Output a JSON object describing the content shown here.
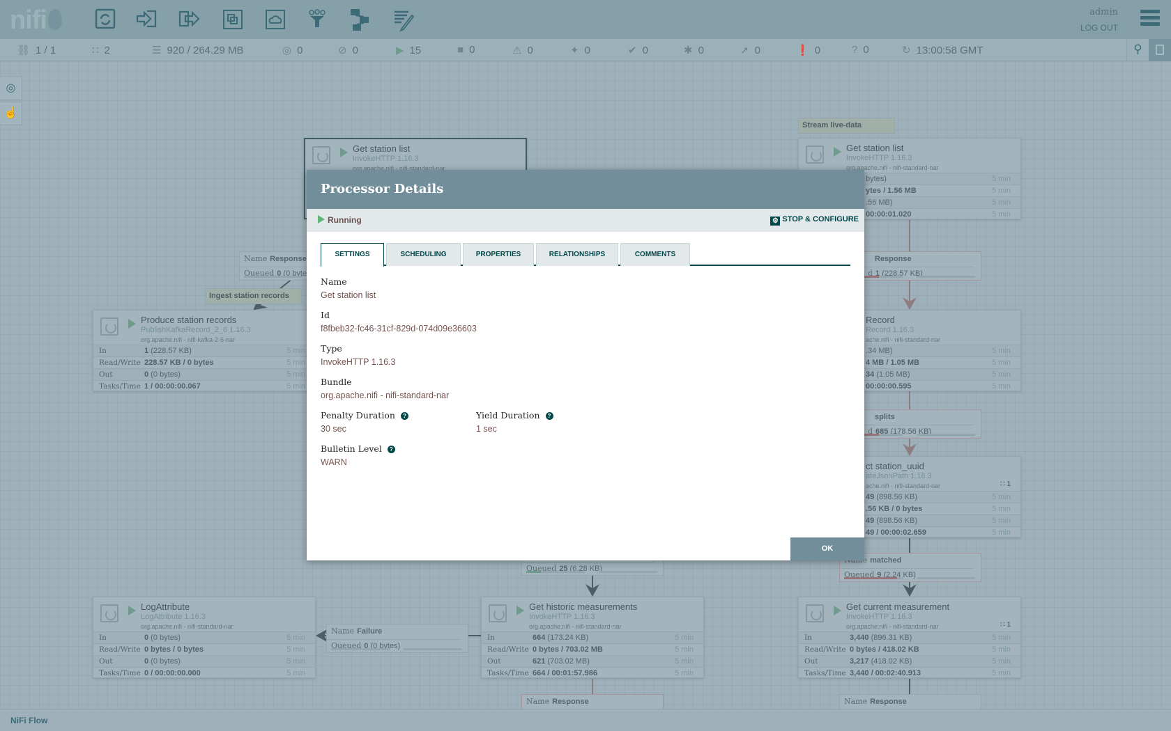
{
  "header": {
    "logo": "nifi",
    "tools": [
      "processor-icon",
      "input-port-icon",
      "output-port-icon",
      "process-group-icon",
      "remote-process-group-icon",
      "funnel-icon",
      "template-icon",
      "label-icon"
    ],
    "user": "admin",
    "logout": "LOG OUT"
  },
  "status_bar": [
    {
      "icon": "cluster-icon",
      "value": "1 / 1"
    },
    {
      "icon": "threads-icon",
      "value": "2"
    },
    {
      "icon": "queued-icon",
      "value": "920 / 264.29 MB"
    },
    {
      "icon": "transmitting-icon",
      "value": "0"
    },
    {
      "icon": "not-transmitting-icon",
      "value": "0"
    },
    {
      "icon": "running-icon",
      "value": "15"
    },
    {
      "icon": "stopped-icon",
      "value": "0"
    },
    {
      "icon": "invalid-icon",
      "value": "0"
    },
    {
      "icon": "disabled-icon",
      "value": "0"
    },
    {
      "icon": "up-to-date-icon",
      "value": "0"
    },
    {
      "icon": "locally-modified-icon",
      "value": "0"
    },
    {
      "icon": "stale-icon",
      "value": "0"
    },
    {
      "icon": "locally-modified-stale-icon",
      "value": "0"
    },
    {
      "icon": "sync-failure-icon",
      "value": "0"
    },
    {
      "icon": "refresh-icon",
      "value": "13:00:58 GMT"
    }
  ],
  "canvas": {
    "labels": [
      "Ingest station records",
      "Stream live-data"
    ],
    "processors": [
      {
        "name": "Get station list",
        "type": "InvokeHTTP 1.16.3",
        "bundle": "org.apache.nifi - nifi-standard-nar",
        "rows": []
      },
      {
        "name": "Produce station records",
        "type": "PublishKafkaRecord_2_6 1.16.3",
        "bundle": "org.apache.nifi - nifi-kafka-2-6-nar",
        "rows": [
          {
            "label": "In",
            "bold": "1",
            "rest": " (228.57 KB)",
            "window": "5 min"
          },
          {
            "label": "Read/Write",
            "bold": "228.57 KB / 0 bytes",
            "rest": "",
            "window": "5 min"
          },
          {
            "label": "Out",
            "bold": "0",
            "rest": " (0 bytes)",
            "window": "5 min"
          },
          {
            "label": "Tasks/Time",
            "bold": "1 / 00:00:00.067",
            "rest": "",
            "window": "5 min"
          }
        ]
      },
      {
        "name": "Get station list",
        "type": "InvokeHTTP 1.16.3",
        "bundle": "org.apache.nifi - nifi-standard-nar",
        "rows": [
          {
            "label": "",
            "bold": "",
            "rest": "bytes)",
            "window": "5 min"
          },
          {
            "label": "",
            "bold": "ytes / 1.56 MB",
            "rest": "",
            "window": "5 min"
          },
          {
            "label": "",
            "bold": "",
            "rest": ".56 MB)",
            "window": "5 min"
          },
          {
            "label": "",
            "bold": "00:00:01.020",
            "rest": "",
            "window": "5 min"
          }
        ]
      },
      {
        "name": "Record",
        "type": "Record 1.16.3",
        "bundle": "ache.nifi - nifi-standard-nar",
        "rows": [
          {
            "label": "",
            "bold": "",
            "rest": ".34 MB)",
            "window": "5 min"
          },
          {
            "label": "",
            "bold": "4 MB / 1.05 MB",
            "rest": "",
            "window": "5 min"
          },
          {
            "label": "",
            "bold": "34",
            "rest": " (1.05 MB)",
            "window": "5 min"
          },
          {
            "label": "",
            "bold": "00:00:00.595",
            "rest": "",
            "window": "5 min"
          }
        ]
      },
      {
        "name": "ct station_uuid",
        "type": "ateJsonPath 1.16.3",
        "bundle": "ache.nifi - nifi-standard-nar",
        "threads": "1",
        "rows": [
          {
            "label": "",
            "bold": "49",
            "rest": " (898.56 KB)",
            "window": "5 min"
          },
          {
            "label": "",
            "bold": ".56 KB / 0 bytes",
            "rest": "",
            "window": "5 min"
          },
          {
            "label": "",
            "bold": "49",
            "rest": " (898.56 KB)",
            "window": "5 min"
          },
          {
            "label": "",
            "bold": "49 / 00:00:02.659",
            "rest": "",
            "window": "5 min"
          }
        ]
      },
      {
        "name": "LogAttribute",
        "type": "LogAttribute 1.16.3",
        "bundle": "org.apache.nifi - nifi-standard-nar",
        "rows": [
          {
            "label": "In",
            "bold": "0",
            "rest": " (0 bytes)",
            "window": "5 min"
          },
          {
            "label": "Read/Write",
            "bold": "0 bytes / 0 bytes",
            "rest": "",
            "window": "5 min"
          },
          {
            "label": "Out",
            "bold": "0",
            "rest": " (0 bytes)",
            "window": "5 min"
          },
          {
            "label": "Tasks/Time",
            "bold": "0 / 00:00:00.000",
            "rest": "",
            "window": "5 min"
          }
        ]
      },
      {
        "name": "Get historic measurements",
        "type": "InvokeHTTP 1.16.3",
        "bundle": "org.apache.nifi - nifi-standard-nar",
        "rows": [
          {
            "label": "In",
            "bold": "664",
            "rest": " (173.24 KB)",
            "window": "5 min"
          },
          {
            "label": "Read/Write",
            "bold": "0 bytes / 703.02 MB",
            "rest": "",
            "window": "5 min"
          },
          {
            "label": "Out",
            "bold": "621",
            "rest": " (703.02 MB)",
            "window": "5 min"
          },
          {
            "label": "Tasks/Time",
            "bold": "664 / 00:01:57.986",
            "rest": "",
            "window": "5 min"
          }
        ]
      },
      {
        "name": "Get current measurement",
        "type": "InvokeHTTP 1.16.3",
        "bundle": "org.apache.nifi - nifi-standard-nar",
        "threads": "1",
        "rows": [
          {
            "label": "In",
            "bold": "3,440",
            "rest": " (896.31 KB)",
            "window": "5 min"
          },
          {
            "label": "Read/Write",
            "bold": "0 bytes / 418.02 KB",
            "rest": "",
            "window": "5 min"
          },
          {
            "label": "Out",
            "bold": "3,217",
            "rest": " (418.02 KB)",
            "window": "5 min"
          },
          {
            "label": "Tasks/Time",
            "bold": "3,440 / 00:02:40.913",
            "rest": "",
            "window": "5 min"
          }
        ]
      }
    ],
    "connections": [
      {
        "name_label": "Name",
        "name": "Response",
        "queued_label": "Queued",
        "count": "0",
        "size": " (0 bytes)",
        "fill": 0
      },
      {
        "name_label": "",
        "name": "Response",
        "queued_label": "d",
        "count": "1",
        "size": " (228.57 KB)",
        "fill": 0.6
      },
      {
        "name_label": "",
        "name": "splits",
        "queued_label": "d",
        "count": "685",
        "size": " (178.56 KB)",
        "fill": 0.6
      },
      {
        "name_label": "Name",
        "name": "matched",
        "queued_label": "Queued",
        "count": "9",
        "size": " (2.24 KB)",
        "fill": 0.9
      },
      {
        "name_label": "",
        "name": "",
        "queued_label": "Queued",
        "count": "25",
        "size": " (6.28 KB)",
        "fill": 0.25
      },
      {
        "name_label": "Name",
        "name": "Failure",
        "queued_label": "Queued",
        "count": "0",
        "size": " (0 bytes)",
        "fill": 0
      },
      {
        "name_label": "Name",
        "name": "Response",
        "queued_label": "",
        "count": "",
        "size": "",
        "fill": 0
      },
      {
        "name_label": "Name",
        "name": "Response",
        "queued_label": "",
        "count": "",
        "size": "",
        "fill": 0
      }
    ]
  },
  "footer": {
    "breadcrumb": "NiFi Flow"
  },
  "dialog": {
    "title": "Processor Details",
    "state": "Running",
    "stop_configure": "STOP & CONFIGURE",
    "tabs": [
      "SETTINGS",
      "SCHEDULING",
      "PROPERTIES",
      "RELATIONSHIPS",
      "COMMENTS"
    ],
    "selected_tab": "SETTINGS",
    "fields": {
      "name": {
        "label": "Name",
        "value": "Get station list"
      },
      "id": {
        "label": "Id",
        "value": "f8fbeb32-fc46-31cf-829d-074d09e36603"
      },
      "type": {
        "label": "Type",
        "value": "InvokeHTTP 1.16.3"
      },
      "bundle": {
        "label": "Bundle",
        "value": "org.apache.nifi - nifi-standard-nar"
      },
      "penalty": {
        "label": "Penalty Duration",
        "value": "30 sec"
      },
      "yield": {
        "label": "Yield Duration",
        "value": "1 sec"
      },
      "bulletin": {
        "label": "Bulletin Level",
        "value": "WARN"
      }
    },
    "ok": "OK"
  },
  "colors": {
    "header": "#728e9b",
    "accent": "#004849",
    "value": "#775351",
    "running": "#5fb67a"
  }
}
